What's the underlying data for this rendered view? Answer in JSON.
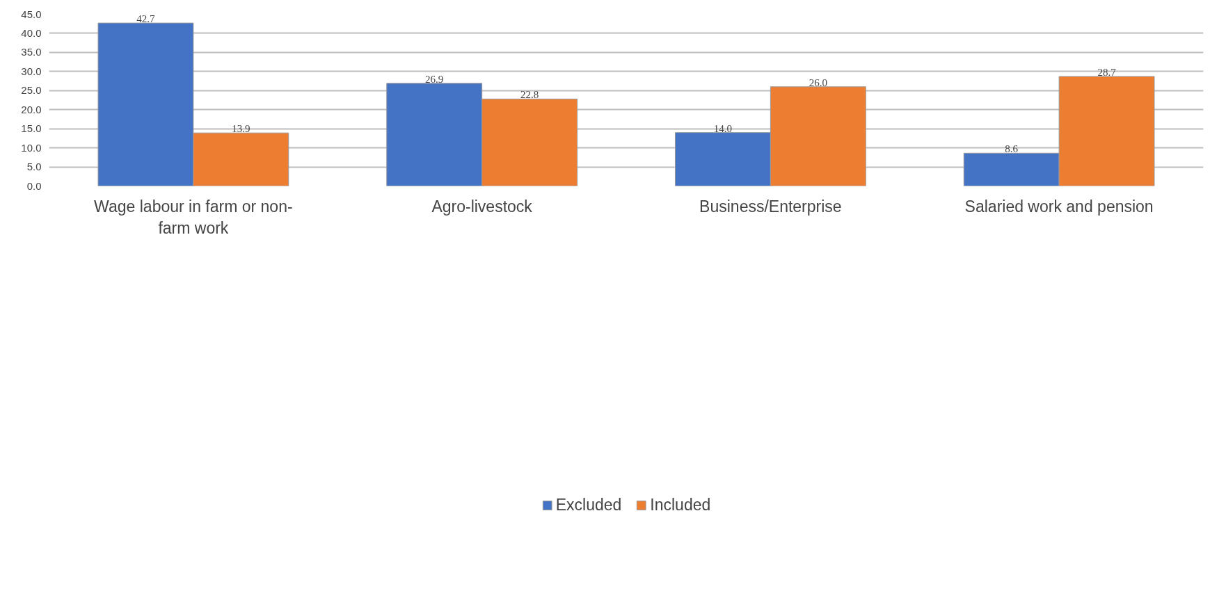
{
  "chart_data": {
    "type": "bar",
    "categories": [
      "Wage labour in farm or non-farm work",
      "Agro-livestock",
      "Business/Enterprise",
      "Salaried work and pension"
    ],
    "series": [
      {
        "name": "Excluded",
        "color": "#4472c4",
        "values": [
          42.7,
          26.9,
          14.0,
          8.6
        ],
        "value_labels": [
          "42.7",
          "26.9",
          "14.0",
          "8.6"
        ]
      },
      {
        "name": "Included",
        "color": "#ed7d31",
        "values": [
          13.9,
          22.8,
          26.0,
          28.7
        ],
        "value_labels": [
          "13.9",
          "22.8",
          "26.0",
          "28.7"
        ]
      }
    ],
    "ylim": [
      0,
      45
    ],
    "yticks": [
      {
        "value": 0,
        "label": "0.0"
      },
      {
        "value": 5,
        "label": "5.0"
      },
      {
        "value": 10,
        "label": "10.0"
      },
      {
        "value": 15,
        "label": "15.0"
      },
      {
        "value": 20,
        "label": "20.0"
      },
      {
        "value": 25,
        "label": "25.0"
      },
      {
        "value": 30,
        "label": "30.0"
      },
      {
        "value": 35,
        "label": "35.0"
      },
      {
        "value": 40,
        "label": "40.0"
      },
      {
        "value": 45,
        "label": "45.0"
      }
    ],
    "grid": "y",
    "legend": "bottom"
  }
}
